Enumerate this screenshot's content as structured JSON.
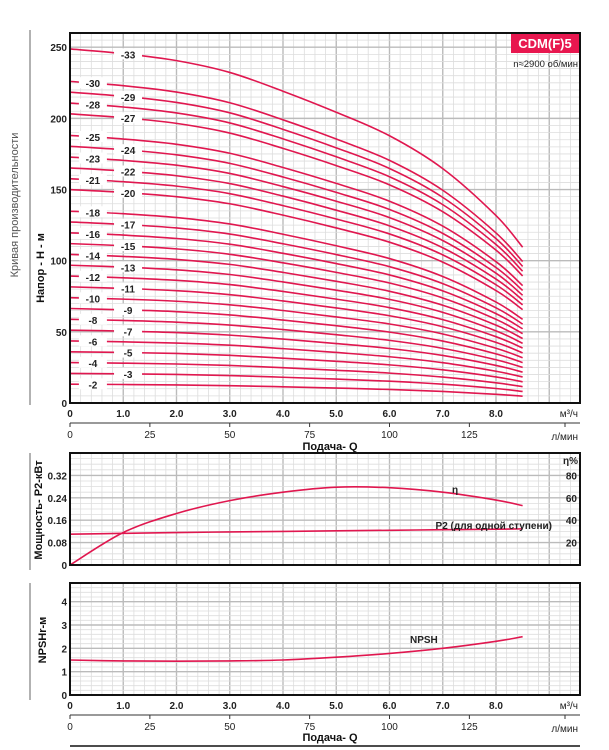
{
  "colors": {
    "curve": "#e0174f",
    "badge": "#e8174f",
    "grid_minor": "#dddddd",
    "grid_major": "#bbbbbb",
    "frame": "#111111"
  },
  "header": {
    "model_badge": "CDM(F)5",
    "speed": "n≈2900 об/мин"
  },
  "side_title": "Кривая производительности",
  "chart_data": [
    {
      "type": "line",
      "title": "",
      "ylabel": "Напор - H - м",
      "xlabel": "Подача- Q",
      "x_unit": "м³/ч",
      "x2_unit": "л/мин",
      "xlim": [
        0,
        9.6
      ],
      "ylim": [
        0,
        260
      ],
      "grid": true,
      "x_ticks": [
        "0",
        "1.0",
        "2.0",
        "3.0",
        "4.0",
        "5.0",
        "6.0",
        "7.0",
        "8.0"
      ],
      "x2_ticks": [
        "0",
        "25",
        "50",
        "75",
        "100",
        "125"
      ],
      "y_ticks": [
        "0",
        "50",
        "100",
        "150",
        "200",
        "250"
      ],
      "x": [
        0,
        1,
        2,
        3,
        4,
        5,
        6,
        7,
        8,
        8.5
      ],
      "series": [
        {
          "name": "-33",
          "values": [
            248.8,
            245.5,
            240.6,
            232.3,
            219.1,
            204.3,
            187.8,
            164.7,
            131.7,
            109.5
          ]
        },
        {
          "name": "-30",
          "values": [
            226,
            223,
            218.5,
            211,
            199,
            185.5,
            170.5,
            149.5,
            119.5,
            99.4
          ]
        },
        {
          "name": "-29",
          "values": [
            218.4,
            215.5,
            211.2,
            203.9,
            192.3,
            179.3,
            164.8,
            144.5,
            115.5,
            96
          ]
        },
        {
          "name": "-28",
          "values": [
            210.8,
            208,
            203.8,
            196.8,
            185.6,
            173,
            159,
            139.4,
            111.4,
            92.6
          ]
        },
        {
          "name": "-27",
          "values": [
            203.2,
            200.5,
            196.5,
            189.7,
            178.9,
            166.8,
            153.3,
            134.4,
            107.4,
            89.3
          ]
        },
        {
          "name": "-25",
          "values": [
            188,
            185.5,
            181.8,
            175.5,
            165.5,
            154.3,
            141.8,
            124.3,
            99.3,
            82.5
          ]
        },
        {
          "name": "-24",
          "values": [
            180.4,
            178,
            174.4,
            168.4,
            158.8,
            148,
            136,
            119.2,
            95.2,
            79.1
          ]
        },
        {
          "name": "-23",
          "values": [
            172.8,
            170.5,
            167.1,
            161.3,
            152.1,
            141.8,
            130.3,
            114.2,
            91.2,
            75.7
          ]
        },
        {
          "name": "-22",
          "values": [
            165.2,
            163,
            159.7,
            154.2,
            145.4,
            135.5,
            124.5,
            109.1,
            87.1,
            72.4
          ]
        },
        {
          "name": "-21",
          "values": [
            157.6,
            155.5,
            152.4,
            147.1,
            138.7,
            129.3,
            118.8,
            104.1,
            83.1,
            69
          ]
        },
        {
          "name": "-20",
          "values": [
            150,
            148,
            145,
            140,
            132,
            123,
            113,
            99,
            79,
            65.6
          ]
        },
        {
          "name": "-18",
          "values": [
            134.8,
            133,
            130.3,
            125.8,
            118.6,
            110.5,
            101.5,
            88.9,
            70.9,
            58.8
          ]
        },
        {
          "name": "-17",
          "values": [
            127.2,
            125.5,
            123,
            118.7,
            111.9,
            104.3,
            95.8,
            83.9,
            66.9,
            55.5
          ]
        },
        {
          "name": "-16",
          "values": [
            119.6,
            118,
            115.6,
            111.6,
            105.2,
            98,
            90,
            78.8,
            62.8,
            52.1
          ]
        },
        {
          "name": "-15",
          "values": [
            112,
            110.5,
            108.3,
            104.5,
            98.5,
            91.8,
            84.3,
            73.8,
            58.8,
            48.7
          ]
        },
        {
          "name": "-14",
          "values": [
            104.4,
            103,
            100.9,
            97.4,
            91.8,
            85.5,
            78.5,
            68.7,
            54.7,
            45.3
          ]
        },
        {
          "name": "-13",
          "values": [
            96.8,
            95.5,
            93.6,
            90.3,
            85.1,
            79.3,
            72.8,
            63.7,
            50.7,
            41.9
          ]
        },
        {
          "name": "-12",
          "values": [
            89.2,
            88,
            86.2,
            83.2,
            78.4,
            73,
            67,
            58.6,
            46.6,
            38.6
          ]
        },
        {
          "name": "-11",
          "values": [
            81.6,
            80.5,
            78.9,
            76.1,
            71.7,
            66.8,
            61.3,
            53.6,
            42.6,
            35.2
          ]
        },
        {
          "name": "-10",
          "values": [
            74,
            73,
            71.5,
            69,
            65,
            60.5,
            55.5,
            48.5,
            38.5,
            31.8
          ]
        },
        {
          "name": "-9",
          "values": [
            66.4,
            65.5,
            64.2,
            61.9,
            58.3,
            54.3,
            49.8,
            43.5,
            34.5,
            28.4
          ]
        },
        {
          "name": "-8",
          "values": [
            58.8,
            58,
            56.8,
            54.8,
            51.6,
            48,
            44,
            38.4,
            30.4,
            25
          ]
        },
        {
          "name": "-7",
          "values": [
            51.2,
            50.5,
            49.5,
            47.7,
            44.9,
            41.8,
            38.3,
            33.4,
            26.4,
            21.7
          ]
        },
        {
          "name": "-6",
          "values": [
            43.6,
            43,
            42.1,
            40.6,
            38.2,
            35.5,
            32.5,
            28.3,
            22.3,
            18.3
          ]
        },
        {
          "name": "-5",
          "values": [
            36,
            35.5,
            34.8,
            33.5,
            31.5,
            29.3,
            26.8,
            23.3,
            18.3,
            14.9
          ]
        },
        {
          "name": "-4",
          "values": [
            28.4,
            28,
            27.4,
            26.4,
            24.8,
            23,
            21,
            18.2,
            14.2,
            11.5
          ]
        },
        {
          "name": "-3",
          "values": [
            20.8,
            20.5,
            20.1,
            19.3,
            18.1,
            16.8,
            15.3,
            13.2,
            10.2,
            8.1
          ]
        },
        {
          "name": "-2",
          "values": [
            13.2,
            13,
            12.7,
            12.2,
            11.4,
            10.5,
            9.5,
            8.1,
            6.1,
            4.8
          ]
        }
      ]
    },
    {
      "type": "line",
      "ylabel": "Мощность- P2-кВт",
      "y2label": "η%",
      "xlim": [
        0,
        9.6
      ],
      "ylim": [
        0,
        0.4
      ],
      "y2lim": [
        0,
        100
      ],
      "grid": true,
      "y_ticks": [
        "0",
        "0.08",
        "0.16",
        "0.24",
        "0.32"
      ],
      "y2_ticks": [
        "20",
        "40",
        "60",
        "80"
      ],
      "x": [
        0,
        1,
        2,
        3,
        4,
        5,
        6,
        7,
        8,
        8.5
      ],
      "series": [
        {
          "name": "η",
          "axis": "right",
          "values": [
            0,
            29,
            46,
            57.5,
            65,
            69.5,
            69,
            65,
            58,
            53
          ]
        },
        {
          "name": "P2 (для одной ступени)",
          "axis": "left",
          "values": [
            0.11,
            0.113,
            0.116,
            0.118,
            0.12,
            0.122,
            0.124,
            0.126,
            0.128,
            0.129
          ]
        }
      ]
    },
    {
      "type": "line",
      "ylabel": "NPSHr-м",
      "xlabel": "Подача- Q",
      "x_unit": "м³/ч",
      "x2_unit": "л/мин",
      "xlim": [
        0,
        9.6
      ],
      "ylim": [
        0,
        4.8
      ],
      "grid": true,
      "y_ticks": [
        "0",
        "1",
        "2",
        "3",
        "4"
      ],
      "x_ticks": [
        "0",
        "1.0",
        "2.0",
        "3.0",
        "4.0",
        "5.0",
        "6.0",
        "7.0",
        "8.0"
      ],
      "x2_ticks": [
        "0",
        "25",
        "50",
        "75",
        "100",
        "125"
      ],
      "x": [
        0,
        1,
        2,
        3,
        4,
        5,
        6,
        7,
        8,
        8.5
      ],
      "series": [
        {
          "name": "NPSH",
          "values": [
            1.5,
            1.46,
            1.45,
            1.46,
            1.5,
            1.62,
            1.78,
            2.0,
            2.3,
            2.5
          ]
        }
      ]
    }
  ]
}
